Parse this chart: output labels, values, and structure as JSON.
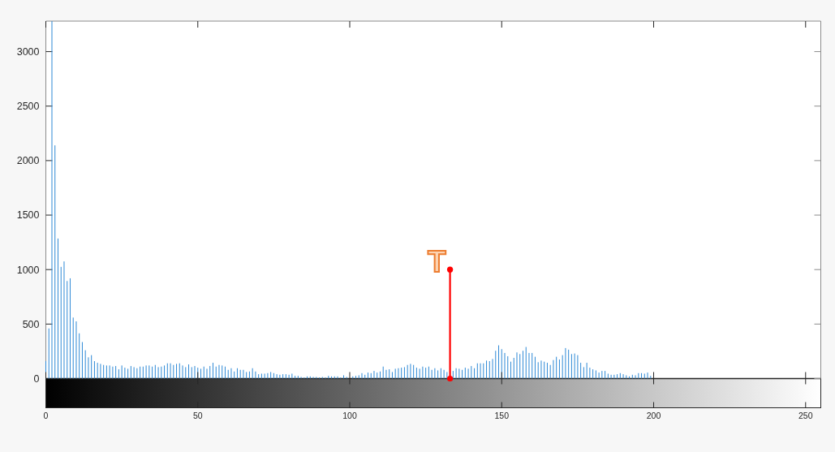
{
  "chart_data": {
    "type": "bar",
    "xlim": [
      0,
      255
    ],
    "ylim": [
      0,
      3280
    ],
    "xticks": [
      0,
      50,
      100,
      150,
      200,
      250
    ],
    "yticks": [
      0,
      500,
      1000,
      1500,
      2000,
      2500,
      3000
    ],
    "series": [
      {
        "type": "bar",
        "color": "#2f8ad6",
        "x": [
          0,
          1,
          2,
          3,
          4,
          5,
          6,
          7,
          8,
          9,
          10,
          11,
          12,
          13,
          14,
          15,
          16,
          17,
          18,
          19,
          20,
          21,
          22,
          23,
          24,
          25,
          26,
          27,
          28,
          29,
          30,
          31,
          32,
          33,
          34,
          35,
          36,
          37,
          38,
          39,
          40,
          41,
          42,
          43,
          44,
          45,
          46,
          47,
          48,
          49,
          50,
          51,
          52,
          53,
          54,
          55,
          56,
          57,
          58,
          59,
          60,
          61,
          62,
          63,
          64,
          65,
          66,
          67,
          68,
          69,
          70,
          71,
          72,
          73,
          74,
          75,
          76,
          77,
          78,
          79,
          80,
          81,
          82,
          83,
          84,
          85,
          86,
          87,
          88,
          89,
          90,
          91,
          92,
          93,
          94,
          95,
          96,
          97,
          98,
          99,
          101,
          102,
          103,
          104,
          105,
          106,
          107,
          108,
          109,
          110,
          111,
          112,
          113,
          114,
          115,
          116,
          117,
          118,
          119,
          120,
          121,
          122,
          123,
          124,
          125,
          126,
          127,
          128,
          129,
          130,
          131,
          132,
          134,
          135,
          136,
          137,
          138,
          139,
          140,
          141,
          142,
          143,
          144,
          145,
          146,
          147,
          148,
          149,
          150,
          151,
          152,
          153,
          154,
          155,
          156,
          157,
          158,
          159,
          160,
          161,
          162,
          163,
          164,
          165,
          166,
          167,
          168,
          169,
          170,
          171,
          172,
          173,
          174,
          175,
          176,
          177,
          178,
          179,
          180,
          181,
          182,
          183,
          184,
          185,
          186,
          187,
          188,
          189,
          190,
          191,
          192,
          193,
          194,
          195,
          196,
          197,
          198,
          199
        ],
        "values": [
          160,
          460,
          3280,
          2140,
          1285,
          1025,
          1075,
          895,
          920,
          560,
          525,
          415,
          335,
          260,
          195,
          215,
          160,
          145,
          135,
          125,
          120,
          120,
          110,
          115,
          85,
          120,
          100,
          90,
          115,
          105,
          95,
          110,
          110,
          120,
          120,
          110,
          125,
          105,
          110,
          120,
          140,
          140,
          125,
          135,
          140,
          120,
          105,
          130,
          105,
          115,
          100,
          90,
          110,
          90,
          115,
          145,
          110,
          125,
          120,
          110,
          80,
          95,
          65,
          95,
          80,
          80,
          60,
          65,
          95,
          65,
          40,
          45,
          45,
          50,
          60,
          50,
          40,
          35,
          40,
          40,
          35,
          45,
          25,
          25,
          15,
          10,
          20,
          20,
          15,
          15,
          10,
          15,
          10,
          25,
          20,
          20,
          20,
          10,
          30,
          15,
          20,
          25,
          30,
          50,
          35,
          55,
          50,
          70,
          55,
          65,
          110,
          80,
          85,
          60,
          90,
          95,
          100,
          105,
          125,
          135,
          125,
          100,
          90,
          110,
          100,
          110,
          80,
          95,
          75,
          95,
          80,
          60,
          70,
          95,
          90,
          80,
          100,
          90,
          115,
          95,
          140,
          140,
          140,
          165,
          160,
          180,
          255,
          305,
          270,
          235,
          205,
          155,
          190,
          240,
          225,
          255,
          290,
          235,
          235,
          200,
          150,
          165,
          155,
          145,
          125,
          170,
          200,
          175,
          215,
          280,
          265,
          225,
          230,
          215,
          145,
          105,
          145,
          100,
          85,
          75,
          55,
          70,
          70,
          45,
          35,
          35,
          40,
          50,
          40,
          30,
          20,
          35,
          30,
          50,
          50,
          45,
          55,
          25
        ]
      },
      {
        "type": "line",
        "color": "#ff0000",
        "x": [
          133,
          133
        ],
        "values": [
          0,
          1000
        ],
        "marker": "circle"
      }
    ],
    "annotations": [
      {
        "text": "T",
        "x": 133,
        "y": 1000
      }
    ]
  }
}
